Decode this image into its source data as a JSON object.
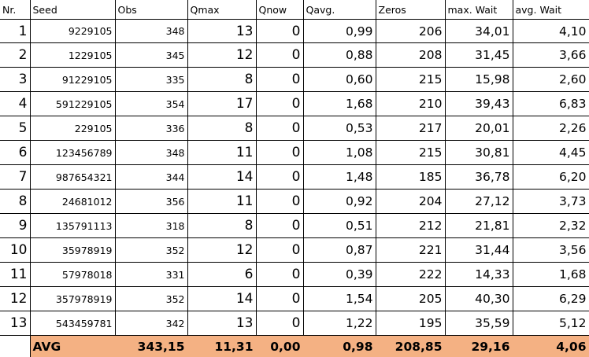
{
  "headers": {
    "nr": "Nr.",
    "seed": "Seed",
    "obs": "Obs",
    "qmax": "Qmax",
    "qnow": "Qnow",
    "qavg": "Qavg.",
    "zeros": "Zeros",
    "maxwait": "max. Wait",
    "avgwait": "avg. Wait"
  },
  "rows": [
    {
      "nr": "1",
      "seed": "9229105",
      "obs": "348",
      "qmax": "13",
      "qnow": "0",
      "qavg": "0,99",
      "zeros": "206",
      "maxwait": "34,01",
      "avgwait": "4,10"
    },
    {
      "nr": "2",
      "seed": "1229105",
      "obs": "345",
      "qmax": "12",
      "qnow": "0",
      "qavg": "0,88",
      "zeros": "208",
      "maxwait": "31,45",
      "avgwait": "3,66"
    },
    {
      "nr": "3",
      "seed": "91229105",
      "obs": "335",
      "qmax": "8",
      "qnow": "0",
      "qavg": "0,60",
      "zeros": "215",
      "maxwait": "15,98",
      "avgwait": "2,60"
    },
    {
      "nr": "4",
      "seed": "591229105",
      "obs": "354",
      "qmax": "17",
      "qnow": "0",
      "qavg": "1,68",
      "zeros": "210",
      "maxwait": "39,43",
      "avgwait": "6,83"
    },
    {
      "nr": "5",
      "seed": "229105",
      "obs": "336",
      "qmax": "8",
      "qnow": "0",
      "qavg": "0,53",
      "zeros": "217",
      "maxwait": "20,01",
      "avgwait": "2,26"
    },
    {
      "nr": "6",
      "seed": "123456789",
      "obs": "348",
      "qmax": "11",
      "qnow": "0",
      "qavg": "1,08",
      "zeros": "215",
      "maxwait": "30,81",
      "avgwait": "4,45"
    },
    {
      "nr": "7",
      "seed": "987654321",
      "obs": "344",
      "qmax": "14",
      "qnow": "0",
      "qavg": "1,48",
      "zeros": "185",
      "maxwait": "36,78",
      "avgwait": "6,20"
    },
    {
      "nr": "8",
      "seed": "24681012",
      "obs": "356",
      "qmax": "11",
      "qnow": "0",
      "qavg": "0,92",
      "zeros": "204",
      "maxwait": "27,12",
      "avgwait": "3,73"
    },
    {
      "nr": "9",
      "seed": "135791113",
      "obs": "318",
      "qmax": "8",
      "qnow": "0",
      "qavg": "0,51",
      "zeros": "212",
      "maxwait": "21,81",
      "avgwait": "2,32"
    },
    {
      "nr": "10",
      "seed": "35978919",
      "obs": "352",
      "qmax": "12",
      "qnow": "0",
      "qavg": "0,87",
      "zeros": "221",
      "maxwait": "31,44",
      "avgwait": "3,56"
    },
    {
      "nr": "11",
      "seed": "57978018",
      "obs": "331",
      "qmax": "6",
      "qnow": "0",
      "qavg": "0,39",
      "zeros": "222",
      "maxwait": "14,33",
      "avgwait": "1,68"
    },
    {
      "nr": "12",
      "seed": "357978919",
      "obs": "352",
      "qmax": "14",
      "qnow": "0",
      "qavg": "1,54",
      "zeros": "205",
      "maxwait": "40,30",
      "avgwait": "6,29"
    },
    {
      "nr": "13",
      "seed": "543459781",
      "obs": "342",
      "qmax": "13",
      "qnow": "0",
      "qavg": "1,22",
      "zeros": "195",
      "maxwait": "35,59",
      "avgwait": "5,12"
    }
  ],
  "summary": {
    "label": "AVG",
    "obs": "343,15",
    "qmax": "11,31",
    "qnow": "0,00",
    "qavg": "0,98",
    "zeros": "208,85",
    "maxwait": "29,16",
    "avgwait": "4,06"
  },
  "colors": {
    "summary_fill": "#f4b183",
    "grid": "#000000"
  }
}
